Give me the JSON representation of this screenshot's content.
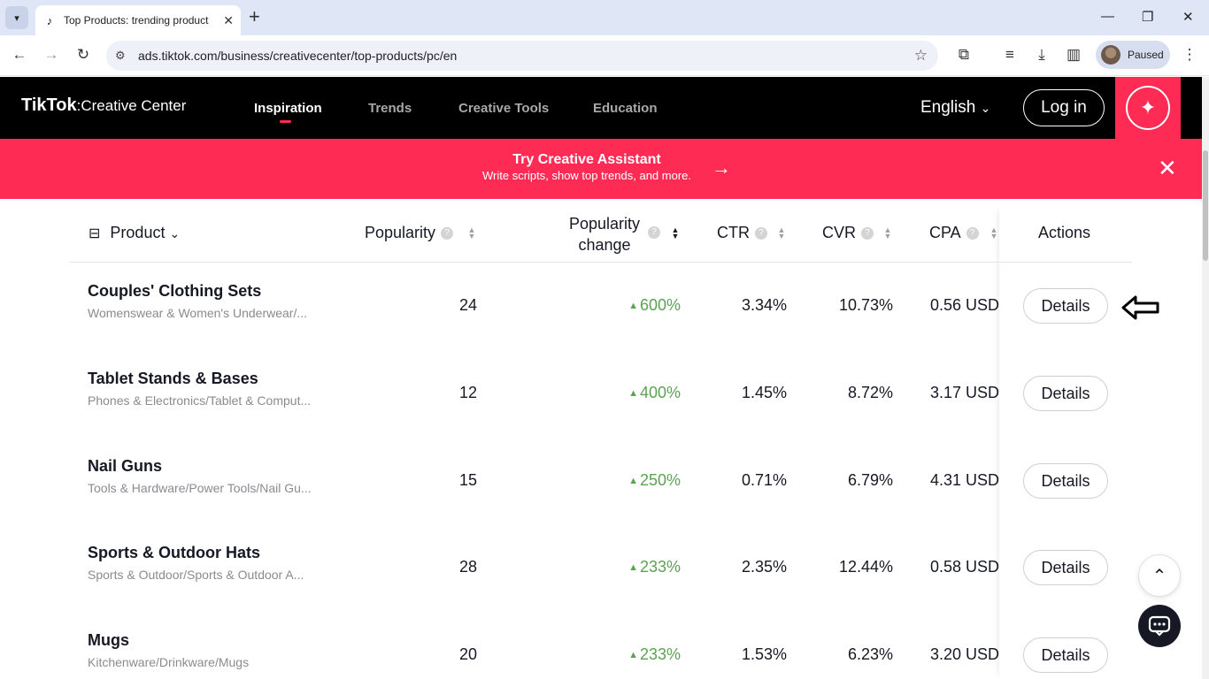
{
  "browser": {
    "tab_title": "Top Products: trending product",
    "url": "ads.tiktok.com/business/creativecenter/top-products/pc/en",
    "profile_label": "Paused"
  },
  "header": {
    "logo_brand": "TikTok",
    "logo_sub": "Creative Center",
    "nav": [
      "Inspiration",
      "Trends",
      "Creative Tools",
      "Education"
    ],
    "active_nav": "Inspiration",
    "language": "English",
    "login_label": "Log in"
  },
  "banner": {
    "title": "Try Creative Assistant",
    "subtitle": "Write scripts, show top trends, and more."
  },
  "table": {
    "columns": {
      "product": "Product",
      "popularity": "Popularity",
      "popularity_change_1": "Popularity",
      "popularity_change_2": "change",
      "ctr": "CTR",
      "cvr": "CVR",
      "cpa": "CPA",
      "actions": "Actions"
    },
    "details_label": "Details",
    "rows": [
      {
        "name": "Couples' Clothing Sets",
        "category": "Womenswear & Women's Underwear/...",
        "popularity": "24",
        "change": "600%",
        "ctr": "3.34%",
        "cvr": "10.73%",
        "cpa": "0.56 USD"
      },
      {
        "name": "Tablet Stands & Bases",
        "category": "Phones & Electronics/Tablet & Comput...",
        "popularity": "12",
        "change": "400%",
        "ctr": "1.45%",
        "cvr": "8.72%",
        "cpa": "3.17 USD"
      },
      {
        "name": "Nail Guns",
        "category": "Tools & Hardware/Power Tools/Nail Gu...",
        "popularity": "15",
        "change": "250%",
        "ctr": "0.71%",
        "cvr": "6.79%",
        "cpa": "4.31 USD"
      },
      {
        "name": "Sports & Outdoor Hats",
        "category": "Sports & Outdoor/Sports & Outdoor A...",
        "popularity": "28",
        "change": "233%",
        "ctr": "2.35%",
        "cvr": "12.44%",
        "cpa": "0.58 USD"
      },
      {
        "name": "Mugs",
        "category": "Kitchenware/Drinkware/Mugs",
        "popularity": "20",
        "change": "233%",
        "ctr": "1.53%",
        "cvr": "6.23%",
        "cpa": "3.20 USD"
      }
    ]
  },
  "colors": {
    "brand_red": "#fe2c55",
    "positive_green": "#5ba352",
    "header_black": "#000000"
  }
}
